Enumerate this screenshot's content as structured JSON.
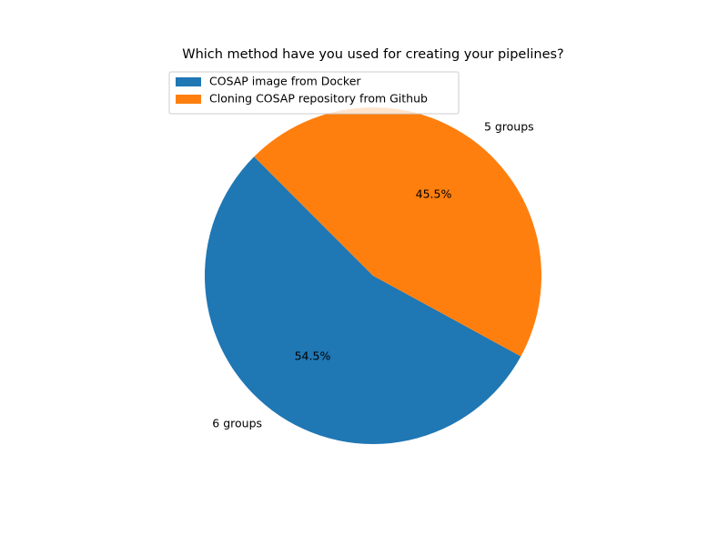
{
  "chart_data": {
    "type": "pie",
    "title": "Which method have you used for creating your pipelines?",
    "legend_position": "upper-left",
    "slices": [
      {
        "name": "COSAP image from Docker",
        "value": 6,
        "label": "6 groups",
        "percent_label": "54.5%",
        "color": "#1f77b4"
      },
      {
        "name": "Cloning COSAP repository from Github",
        "value": 5,
        "label": "5 groups",
        "percent_label": "45.5%",
        "color": "#ff7f0e"
      }
    ]
  }
}
